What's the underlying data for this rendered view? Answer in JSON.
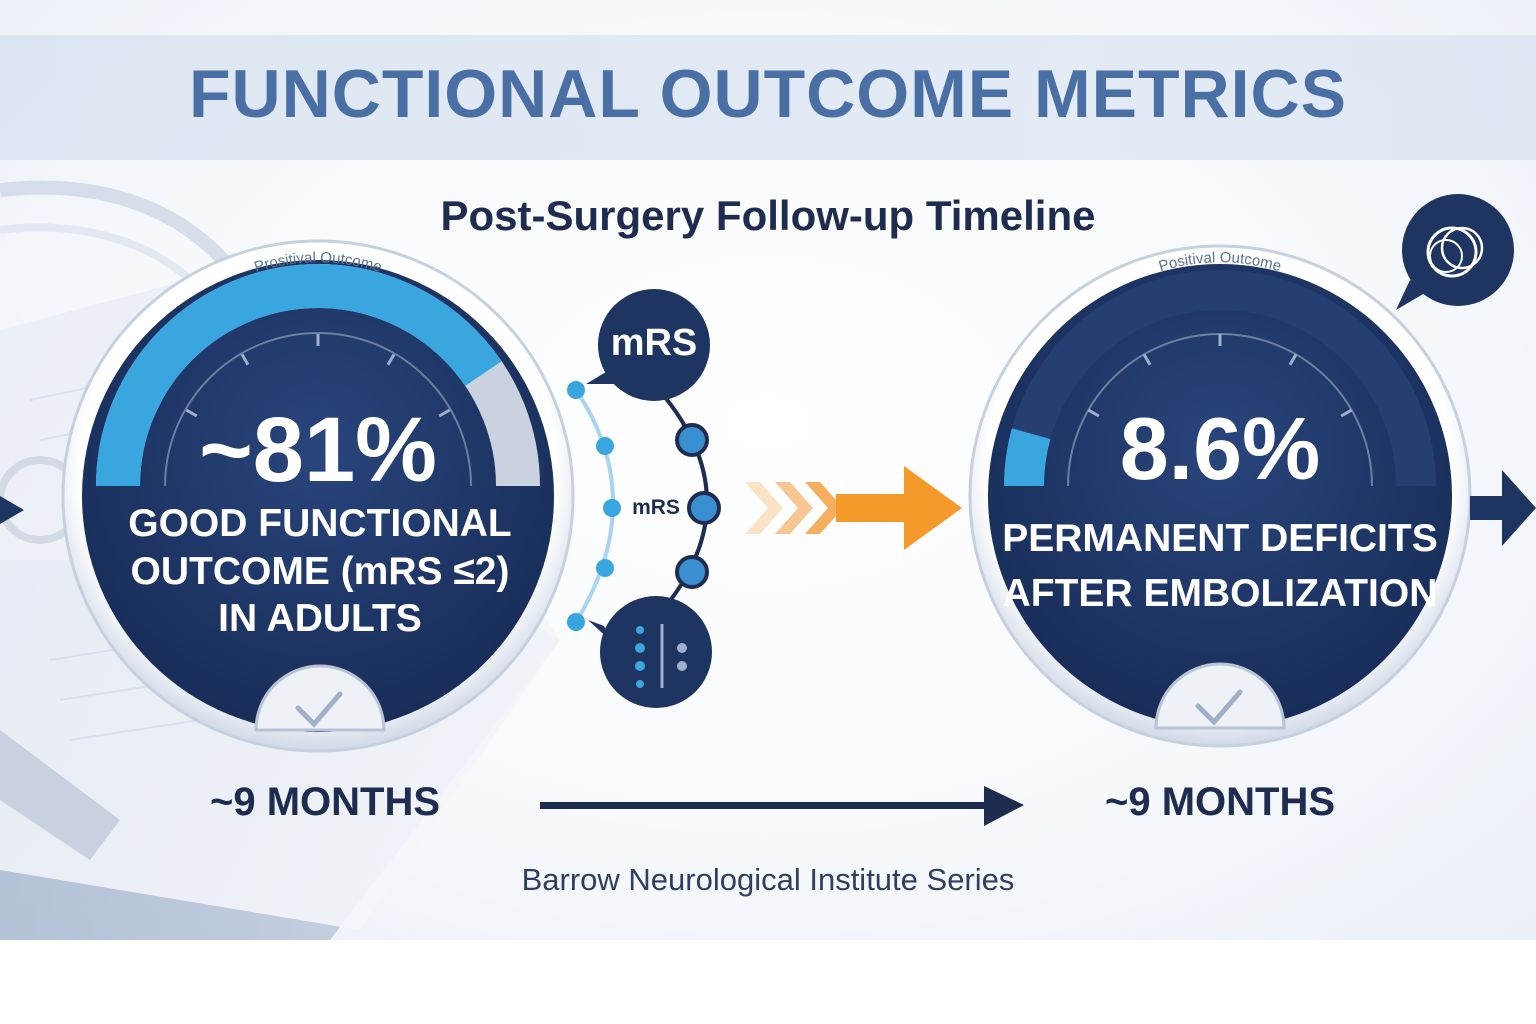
{
  "header": {
    "title": "FUNCTIONAL OUTCOME METRICS",
    "subtitle": "Post-Surgery Follow-up Timeline"
  },
  "left_gauge": {
    "arc_label": "Prositival Outcome",
    "value": "~81%",
    "caption_line1": "GOOD FUNCTIONAL",
    "caption_line2": "OUTCOME (mRS ≤2)",
    "caption_line3": "IN ADULTS",
    "fill_fraction": 0.81,
    "timeframe": "~9 MONTHS"
  },
  "right_gauge": {
    "arc_label": "Positival Outcome",
    "value": "8.6%",
    "caption_line1": "PERMANENT DEFICITS",
    "caption_line2": "AFTER EMBOLIZATION",
    "fill_fraction": 0.086,
    "timeframe": "~9 MONTHS"
  },
  "scale_graphic": {
    "bubble_label": "mRS",
    "middle_label": "mRS"
  },
  "footer": {
    "source": "Barrow Neurological Institute Series"
  },
  "colors": {
    "navy": "#1e3461",
    "accent_blue": "#3aa6df",
    "title_blue": "#4a6fa5",
    "orange": "#f39a2b",
    "text_dark": "#1e2d4f"
  },
  "icons": [
    "clock-icon",
    "checkmark-icon",
    "rings-icon",
    "arrow-right-icon",
    "chevron-icon"
  ]
}
